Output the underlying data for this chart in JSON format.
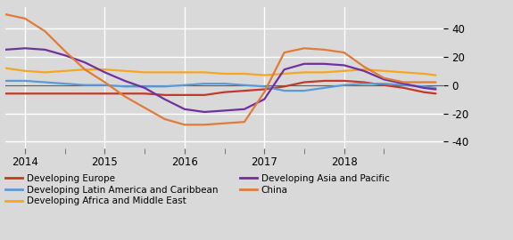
{
  "background_color": "#d9d9d9",
  "plot_bg_color": "#d9d9d9",
  "ylim": [
    -45,
    55
  ],
  "yticks": [
    -40,
    -20,
    0,
    20,
    40
  ],
  "xlim": [
    2013.75,
    2019.25
  ],
  "grid_color": "#ffffff",
  "zero_line_color": "#606060",
  "series": {
    "Developing Europe": {
      "color": "#c0392b",
      "x": [
        2013.75,
        2014.0,
        2014.25,
        2014.5,
        2014.75,
        2015.0,
        2015.25,
        2015.5,
        2015.75,
        2016.0,
        2016.25,
        2016.5,
        2016.75,
        2017.0,
        2017.25,
        2017.5,
        2017.75,
        2018.0,
        2018.25,
        2018.5,
        2018.75,
        2019.0,
        2019.15
      ],
      "y": [
        -6,
        -6,
        -6,
        -6,
        -6,
        -6,
        -6,
        -6,
        -7,
        -7,
        -7,
        -5,
        -4,
        -3,
        -1,
        2,
        3,
        3,
        2,
        0,
        -2,
        -5,
        -6
      ]
    },
    "Developing Latin America and Caribbean": {
      "color": "#5b9bd5",
      "x": [
        2013.75,
        2014.0,
        2014.25,
        2014.5,
        2014.75,
        2015.0,
        2015.25,
        2015.5,
        2015.75,
        2016.0,
        2016.25,
        2016.5,
        2016.75,
        2017.0,
        2017.25,
        2017.5,
        2017.75,
        2018.0,
        2018.25,
        2018.5,
        2018.75,
        2019.0,
        2019.15
      ],
      "y": [
        3,
        3,
        2,
        1,
        0,
        0,
        -1,
        -1,
        -1,
        0,
        1,
        1,
        0,
        -1,
        -4,
        -4,
        -2,
        0,
        1,
        1,
        0,
        -1,
        -2
      ]
    },
    "Developing Africa and Middle East": {
      "color": "#f5a623",
      "x": [
        2013.75,
        2014.0,
        2014.25,
        2014.5,
        2014.75,
        2015.0,
        2015.25,
        2015.5,
        2015.75,
        2016.0,
        2016.25,
        2016.5,
        2016.75,
        2017.0,
        2017.25,
        2017.5,
        2017.75,
        2018.0,
        2018.25,
        2018.5,
        2018.75,
        2019.0,
        2019.15
      ],
      "y": [
        12,
        10,
        9,
        10,
        11,
        11,
        10,
        9,
        9,
        9,
        9,
        8,
        8,
        7,
        8,
        9,
        9,
        10,
        11,
        10,
        9,
        8,
        7
      ]
    },
    "Developing Asia and Pacific": {
      "color": "#7030a0",
      "x": [
        2013.75,
        2014.0,
        2014.25,
        2014.5,
        2014.75,
        2015.0,
        2015.25,
        2015.5,
        2015.75,
        2016.0,
        2016.25,
        2016.5,
        2016.75,
        2017.0,
        2017.25,
        2017.5,
        2017.75,
        2018.0,
        2018.25,
        2018.5,
        2018.75,
        2019.0,
        2019.15
      ],
      "y": [
        25,
        26,
        25,
        21,
        16,
        9,
        3,
        -2,
        -10,
        -17,
        -19,
        -18,
        -17,
        -10,
        11,
        15,
        15,
        14,
        10,
        4,
        1,
        -2,
        -3
      ]
    },
    "China": {
      "color": "#e07b39",
      "x": [
        2013.75,
        2014.0,
        2014.25,
        2014.5,
        2014.75,
        2015.0,
        2015.25,
        2015.5,
        2015.75,
        2016.0,
        2016.25,
        2016.5,
        2016.75,
        2017.0,
        2017.25,
        2017.5,
        2017.75,
        2018.0,
        2018.25,
        2018.5,
        2018.75,
        2019.0,
        2019.15
      ],
      "y": [
        50,
        47,
        38,
        24,
        11,
        2,
        -8,
        -16,
        -24,
        -28,
        -28,
        -27,
        -26,
        -5,
        23,
        26,
        25,
        23,
        13,
        5,
        2,
        2,
        2
      ]
    }
  },
  "col1_legend": [
    {
      "label": "Developing Europe",
      "color": "#c0392b"
    },
    {
      "label": "Developing Latin America and Caribbean",
      "color": "#5b9bd5"
    },
    {
      "label": "Developing Africa and Middle East",
      "color": "#f5a623"
    }
  ],
  "col2_legend": [
    {
      "label": "Developing Asia and Pacific",
      "color": "#7030a0"
    },
    {
      "label": "China",
      "color": "#e07b39"
    }
  ],
  "xtick_positions": [
    2014,
    2015,
    2016,
    2017,
    2018
  ],
  "xtick_labels": [
    "2014",
    "2015",
    "2016",
    "2017",
    "2018"
  ],
  "minor_tick_positions": [
    2014.5,
    2015.5,
    2016.5,
    2017.5,
    2018.5
  ],
  "linewidth": 1.6
}
